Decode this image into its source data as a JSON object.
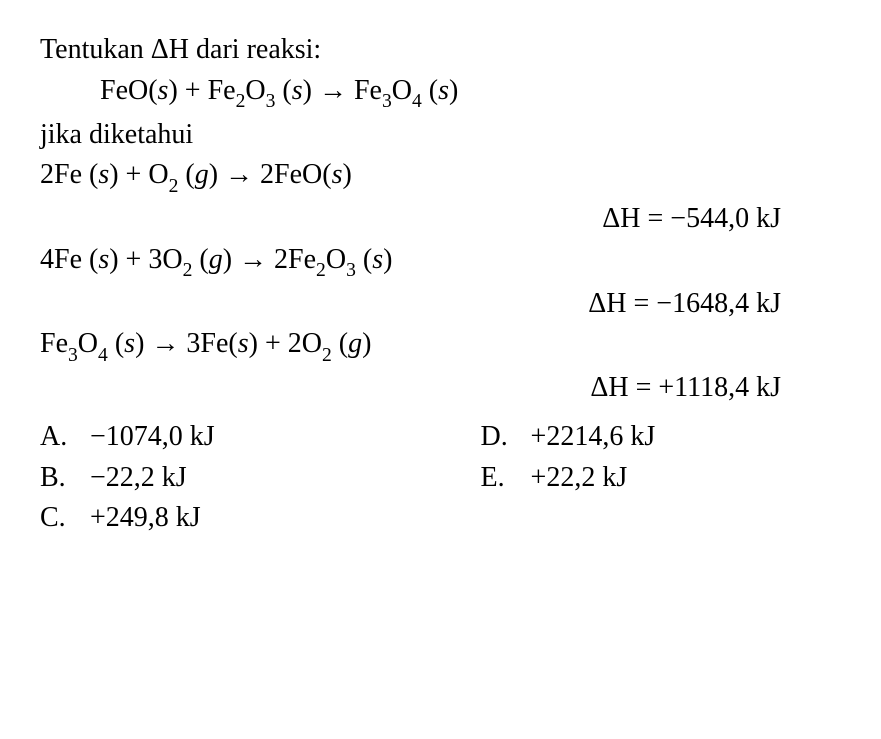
{
  "q": {
    "prompt_pre": "Tentukan ",
    "deltaH": "ΔH",
    "prompt_post": " dari reaksi:",
    "main_reaction": {
      "lhs1": "FeO(",
      "s1": "s",
      "plus1": ") + Fe",
      "sub2": "2",
      "O": "O",
      "sub3": "3",
      "open2": " (",
      "s2": "s",
      "arrow": ") → Fe",
      "sub4": "3",
      "O2": "O",
      "sub5": "4",
      "open3": " (",
      "s3": "s",
      "close3": ")"
    },
    "given_label": "jika diketahui",
    "r1": {
      "text_a": "2Fe (",
      "s1": "s",
      "text_b": ") + O",
      "sub1": "2",
      "text_c": " (",
      "g1": "g",
      "text_d": ") → 2FeO(",
      "s2": "s",
      "text_e": ")",
      "dH_label": "ΔH",
      "dH_val": " = −544,0 kJ"
    },
    "r2": {
      "text_a": "4Fe (",
      "s1": "s",
      "text_b": ") + 3O",
      "sub1": "2",
      "text_c": " (",
      "g1": "g",
      "text_d": ") → 2Fe",
      "sub2": "2",
      "O": "O",
      "sub3": "3",
      "text_e": " (",
      "s2": "s",
      "text_f": ")",
      "dH_label": "ΔH",
      "dH_val": " = −1648,4 kJ"
    },
    "r3": {
      "text_a": "Fe",
      "sub1": "3",
      "O1": "O",
      "sub2": "4",
      "text_b": " (",
      "s1": "s",
      "text_c": ") → 3Fe(",
      "s2": "s",
      "text_d": ") + 2O",
      "sub3": "2",
      "text_e": " (",
      "g1": "g",
      "text_f": ")",
      "dH_label": "ΔH",
      "dH_val": " = +1118,4 kJ"
    },
    "options": {
      "A": {
        "letter": "A.",
        "val": "−1074,0 kJ"
      },
      "B": {
        "letter": "B.",
        "val": "−22,2 kJ"
      },
      "C": {
        "letter": "C.",
        "val": "+249,8 kJ"
      },
      "D": {
        "letter": "D.",
        "val": "+2214,6 kJ"
      },
      "E": {
        "letter": "E.",
        "val": "+22,2  kJ"
      }
    }
  }
}
